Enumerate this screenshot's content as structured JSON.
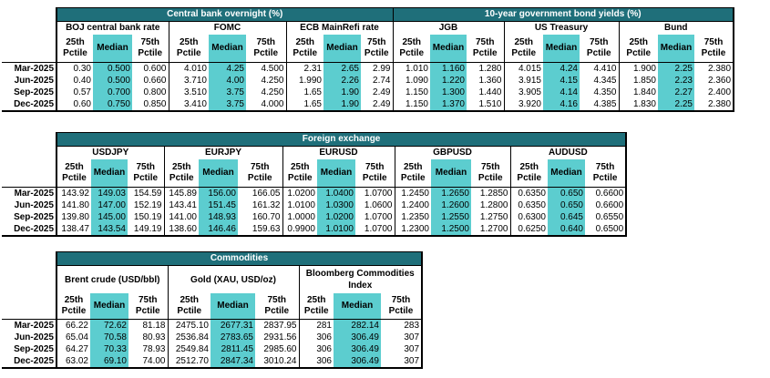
{
  "rows": [
    "Mar-2025",
    "Jun-2025",
    "Sep-2025",
    "Dec-2025"
  ],
  "colors": {
    "banner": "#1f6f7a",
    "median_highlight": "#5ccdcf"
  },
  "tables": [
    {
      "id": "rates",
      "bands": [
        {
          "title": "Central bank overnight (%)",
          "span": 9
        },
        {
          "title": "10-year government bond yields (%)",
          "span": 9
        }
      ],
      "groups": [
        {
          "name": "BOJ central bank rate",
          "data": [
            [
              "0.30",
              "0.500",
              "0.600"
            ],
            [
              "0.40",
              "0.500",
              "0.660"
            ],
            [
              "0.57",
              "0.700",
              "0.800"
            ],
            [
              "0.60",
              "0.750",
              "0.850"
            ]
          ]
        },
        {
          "name": "FOMC",
          "data": [
            [
              "4.010",
              "4.25",
              "4.500"
            ],
            [
              "3.710",
              "4.00",
              "4.250"
            ],
            [
              "3.510",
              "3.75",
              "4.250"
            ],
            [
              "3.410",
              "3.75",
              "4.000"
            ]
          ]
        },
        {
          "name": "ECB MainRefi rate",
          "data": [
            [
              "2.31",
              "2.65",
              "2.99"
            ],
            [
              "1.990",
              "2.26",
              "2.74"
            ],
            [
              "1.65",
              "1.90",
              "2.49"
            ],
            [
              "1.65",
              "1.90",
              "2.49"
            ]
          ]
        },
        {
          "name": "JGB",
          "data": [
            [
              "1.010",
              "1.160",
              "1.280"
            ],
            [
              "1.090",
              "1.220",
              "1.360"
            ],
            [
              "1.150",
              "1.300",
              "1.440"
            ],
            [
              "1.150",
              "1.370",
              "1.510"
            ]
          ]
        },
        {
          "name": "US Treasury",
          "data": [
            [
              "4.015",
              "4.24",
              "4.410"
            ],
            [
              "3.915",
              "4.15",
              "4.345"
            ],
            [
              "3.905",
              "4.14",
              "4.350"
            ],
            [
              "3.920",
              "4.16",
              "4.385"
            ]
          ]
        },
        {
          "name": "Bund",
          "data": [
            [
              "1.900",
              "2.25",
              "2.380"
            ],
            [
              "1.850",
              "2.23",
              "2.360"
            ],
            [
              "1.840",
              "2.27",
              "2.400"
            ],
            [
              "1.830",
              "2.25",
              "2.380"
            ]
          ]
        }
      ]
    },
    {
      "id": "fx",
      "bands": [
        {
          "title": "Foreign exchange",
          "span": 15
        }
      ],
      "groups": [
        {
          "name": "USDJPY",
          "data": [
            [
              "143.92",
              "149.03",
              "154.59"
            ],
            [
              "141.80",
              "147.00",
              "152.19"
            ],
            [
              "139.80",
              "145.00",
              "150.19"
            ],
            [
              "138.47",
              "143.54",
              "149.19"
            ]
          ]
        },
        {
          "name": "EURJPY",
          "data": [
            [
              "145.89",
              "156.00",
              "166.05"
            ],
            [
              "143.41",
              "151.45",
              "161.32"
            ],
            [
              "141.00",
              "148.93",
              "160.70"
            ],
            [
              "138.60",
              "146.46",
              "159.63"
            ]
          ]
        },
        {
          "name": "EURUSD",
          "data": [
            [
              "1.0200",
              "1.0400",
              "1.0700"
            ],
            [
              "1.0100",
              "1.0300",
              "1.0600"
            ],
            [
              "1.0000",
              "1.0200",
              "1.0700"
            ],
            [
              "0.9900",
              "1.0100",
              "1.0700"
            ]
          ]
        },
        {
          "name": "GBPUSD",
          "data": [
            [
              "1.2450",
              "1.2650",
              "1.2850"
            ],
            [
              "1.2400",
              "1.2600",
              "1.2800"
            ],
            [
              "1.2350",
              "1.2550",
              "1.2750"
            ],
            [
              "1.2300",
              "1.2500",
              "1.2700"
            ]
          ]
        },
        {
          "name": "AUDUSD",
          "data": [
            [
              "0.6350",
              "0.650",
              "0.6600"
            ],
            [
              "0.6350",
              "0.650",
              "0.6600"
            ],
            [
              "0.6300",
              "0.645",
              "0.6550"
            ],
            [
              "0.6250",
              "0.640",
              "0.6500"
            ]
          ]
        }
      ]
    },
    {
      "id": "commodities",
      "bands": [
        {
          "title": "Commodities",
          "span": 9
        }
      ],
      "groups": [
        {
          "name": "Brent crude (USD/bbl)",
          "data": [
            [
              "66.22",
              "72.62",
              "81.18"
            ],
            [
              "65.04",
              "70.58",
              "80.93"
            ],
            [
              "64.27",
              "70.33",
              "78.93"
            ],
            [
              "63.02",
              "69.10",
              "74.00"
            ]
          ]
        },
        {
          "name": "Gold (XAU, USD/oz)",
          "data": [
            [
              "2475.10",
              "2677.31",
              "2837.95"
            ],
            [
              "2536.84",
              "2783.65",
              "2931.56"
            ],
            [
              "2549.84",
              "2811.45",
              "2985.60"
            ],
            [
              "2512.70",
              "2847.34",
              "3010.24"
            ]
          ]
        },
        {
          "name": "Bloomberg Commodities Index",
          "data": [
            [
              "281",
              "282.14",
              "283"
            ],
            [
              "306",
              "306.49",
              "307"
            ],
            [
              "306",
              "306.49",
              "307"
            ],
            [
              "306",
              "306.49",
              "307"
            ]
          ]
        }
      ]
    }
  ],
  "labels": {
    "p25": "25th Pctile",
    "median": "Median",
    "p75": "75th Pctile"
  }
}
